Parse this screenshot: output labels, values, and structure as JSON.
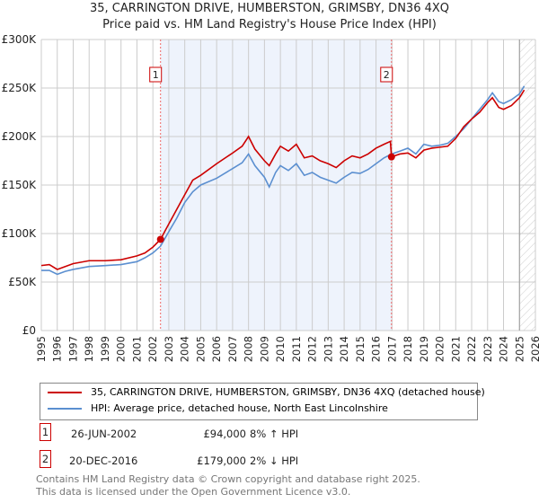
{
  "chart_data": {
    "type": "line",
    "title": "35, CARRINGTON DRIVE, HUMBERSTON, GRIMSBY, DN36 4XQ",
    "subtitle": "Price paid vs. HM Land Registry's House Price Index (HPI)",
    "xlim": [
      1995,
      2026
    ],
    "ylim": [
      0,
      300000
    ],
    "yticks": [
      0,
      50000,
      100000,
      150000,
      200000,
      250000,
      300000
    ],
    "ytick_labels": [
      "£0",
      "£50K",
      "£100K",
      "£150K",
      "£200K",
      "£250K",
      "£300K"
    ],
    "xticks": [
      1995,
      1996,
      1997,
      1998,
      1999,
      2000,
      2001,
      2002,
      2003,
      2004,
      2005,
      2006,
      2007,
      2008,
      2009,
      2010,
      2011,
      2012,
      2013,
      2014,
      2015,
      2016,
      2017,
      2018,
      2019,
      2020,
      2021,
      2022,
      2023,
      2024,
      2025,
      2026
    ],
    "grid": true,
    "series": [
      {
        "name": "35, CARRINGTON DRIVE, HUMBERSTON, GRIMSBY, DN36 4XQ (detached house)",
        "color": "#cc0000",
        "x": [
          1995,
          1995.5,
          1996,
          1996.5,
          1997,
          1998,
          1999,
          2000,
          2001,
          2001.5,
          2002,
          2002.48,
          2003,
          2003.5,
          2004,
          2004.5,
          2005,
          2006,
          2007,
          2007.6,
          2008,
          2008.4,
          2009,
          2009.3,
          2009.7,
          2010,
          2010.5,
          2011,
          2011.5,
          2012,
          2012.5,
          2013,
          2013.5,
          2014,
          2014.5,
          2015,
          2015.5,
          2016,
          2016.5,
          2016.9,
          2016.97,
          2017.5,
          2018,
          2018.5,
          2019,
          2019.5,
          2020,
          2020.5,
          2021,
          2021.5,
          2022,
          2022.5,
          2023,
          2023.3,
          2023.7,
          2024,
          2024.5,
          2025,
          2025.3
        ],
        "y": [
          67000,
          68000,
          63000,
          66000,
          69000,
          72000,
          72000,
          73000,
          77000,
          80000,
          86000,
          94000,
          110000,
          125000,
          140000,
          155000,
          160000,
          172000,
          183000,
          190000,
          200000,
          187000,
          175000,
          170000,
          182000,
          190000,
          185000,
          192000,
          178000,
          180000,
          175000,
          172000,
          168000,
          175000,
          180000,
          178000,
          182000,
          188000,
          192000,
          195000,
          179000,
          182000,
          183000,
          178000,
          186000,
          188000,
          189000,
          190000,
          198000,
          210000,
          218000,
          225000,
          235000,
          240000,
          230000,
          228000,
          232000,
          240000,
          248000
        ]
      },
      {
        "name": "HPI: Average price, detached house, North East Lincolnshire",
        "color": "#5b8fd0",
        "x": [
          1995,
          1995.5,
          1996,
          1996.5,
          1997,
          1998,
          1999,
          2000,
          2001,
          2001.5,
          2002,
          2002.48,
          2003,
          2003.5,
          2004,
          2004.5,
          2005,
          2006,
          2007,
          2007.6,
          2008,
          2008.4,
          2009,
          2009.3,
          2009.7,
          2010,
          2010.5,
          2011,
          2011.5,
          2012,
          2012.5,
          2013,
          2013.5,
          2014,
          2014.5,
          2015,
          2015.5,
          2016,
          2016.5,
          2016.97,
          2017.5,
          2018,
          2018.5,
          2019,
          2019.5,
          2020,
          2020.5,
          2021,
          2021.5,
          2022,
          2022.5,
          2023,
          2023.3,
          2023.7,
          2024,
          2024.5,
          2025,
          2025.3
        ],
        "y": [
          62000,
          62000,
          58000,
          61000,
          63000,
          66000,
          67000,
          68000,
          71000,
          75000,
          80000,
          87000,
          102000,
          116000,
          132000,
          143000,
          150000,
          157000,
          167000,
          173000,
          182000,
          170000,
          158000,
          148000,
          163000,
          170000,
          165000,
          172000,
          160000,
          163000,
          158000,
          155000,
          152000,
          158000,
          163000,
          162000,
          166000,
          172000,
          178000,
          182000,
          185000,
          188000,
          182000,
          192000,
          190000,
          191000,
          193000,
          200000,
          208000,
          218000,
          228000,
          238000,
          245000,
          236000,
          234000,
          238000,
          244000,
          252000
        ]
      }
    ],
    "sales": [
      {
        "label": "1",
        "x": 2002.48,
        "y": 94000
      },
      {
        "label": "2",
        "x": 2016.97,
        "y": 179000
      }
    ],
    "forecast_start": 2025.0
  },
  "legend": {
    "items": [
      "35, CARRINGTON DRIVE, HUMBERSTON, GRIMSBY, DN36 4XQ (detached house)",
      "HPI: Average price, detached house, North East Lincolnshire"
    ]
  },
  "transactions": [
    {
      "num": "1",
      "date": "26-JUN-2002",
      "price": "£94,000",
      "hpi": "8% ↑ HPI"
    },
    {
      "num": "2",
      "date": "20-DEC-2016",
      "price": "£179,000",
      "hpi": "2% ↓ HPI"
    }
  ],
  "footer": {
    "line1": "Contains HM Land Registry data © Crown copyright and database right 2025.",
    "line2": "This data is licensed under the Open Government Licence v3.0."
  }
}
